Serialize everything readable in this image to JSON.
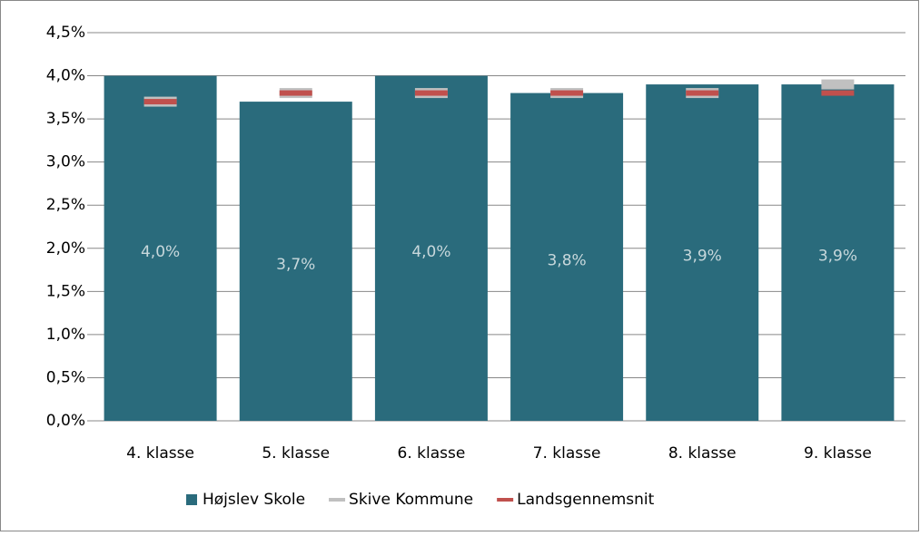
{
  "chart_data": {
    "type": "bar",
    "categories": [
      "4. klasse",
      "5. klasse",
      "6. klasse",
      "7. klasse",
      "8. klasse",
      "9. klasse"
    ],
    "series": [
      {
        "name": "Højslev Skole",
        "color": "#2a6b7c",
        "mark": "bar",
        "values": [
          4.0,
          3.7,
          4.0,
          3.8,
          3.9,
          3.9
        ],
        "value_labels": [
          "4,0%",
          "3,7%",
          "4,0%",
          "3,8%",
          "3,9%",
          "3,9%"
        ]
      },
      {
        "name": "Skive Kommune",
        "color": "#c0c0c0",
        "mark": "dash",
        "values": [
          3.7,
          3.8,
          3.8,
          3.8,
          3.8,
          3.9
        ]
      },
      {
        "name": "Landsgennemsnit",
        "color": "#c0504d",
        "mark": "dash",
        "values": [
          3.7,
          3.8,
          3.8,
          3.8,
          3.8,
          3.8
        ]
      }
    ],
    "ylim": [
      0,
      4.5
    ],
    "yticks": [
      {
        "value": 0,
        "label": "0,0%"
      },
      {
        "value": 0.5,
        "label": "0,5%"
      },
      {
        "value": 1.0,
        "label": "1,0%"
      },
      {
        "value": 1.5,
        "label": "1,5%"
      },
      {
        "value": 2.0,
        "label": "2,0%"
      },
      {
        "value": 2.5,
        "label": "2,5%"
      },
      {
        "value": 3.0,
        "label": "3,0%"
      },
      {
        "value": 3.5,
        "label": "3,5%"
      },
      {
        "value": 4.0,
        "label": "4,0%"
      },
      {
        "value": 4.5,
        "label": "4,5%"
      }
    ],
    "grid": true,
    "legend": "bottom"
  }
}
